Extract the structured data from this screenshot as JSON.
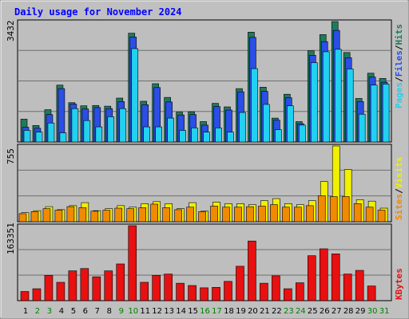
{
  "chart_data": [
    {
      "type": "bar",
      "title": "Daily usage for November 2024",
      "categories": [
        "1",
        "2",
        "3",
        "4",
        "5",
        "6",
        "7",
        "8",
        "9",
        "10",
        "11",
        "12",
        "13",
        "14",
        "15",
        "16",
        "17",
        "18",
        "19",
        "20",
        "21",
        "22",
        "23",
        "24",
        "25",
        "26",
        "27",
        "28",
        "29",
        "30",
        "31"
      ],
      "weekend_days": [
        "2",
        "3",
        "9",
        "10",
        "16",
        "17",
        "23",
        "24",
        "30",
        "31"
      ],
      "ymax_label": "3432",
      "ymax": 3432,
      "series": [
        {
          "name": "Hits",
          "color": "#1f7a5c",
          "values": [
            650,
            470,
            920,
            1620,
            1120,
            1030,
            1040,
            1020,
            1250,
            3100,
            1160,
            1660,
            1270,
            850,
            860,
            580,
            1100,
            1000,
            1520,
            3130,
            1560,
            680,
            1360,
            580,
            2600,
            3060,
            3432,
            2550,
            1240,
            1960,
            1810
          ]
        },
        {
          "name": "Files",
          "color": "#2a4ee6",
          "values": [
            420,
            390,
            780,
            1520,
            1080,
            940,
            980,
            950,
            1150,
            2990,
            1060,
            1550,
            1140,
            770,
            780,
            480,
            1010,
            910,
            1430,
            2980,
            1440,
            620,
            1260,
            520,
            2470,
            2860,
            3180,
            2400,
            1150,
            1850,
            1700
          ]
        },
        {
          "name": "Pages",
          "color": "#22d0f0",
          "values": [
            330,
            280,
            540,
            260,
            950,
            610,
            430,
            720,
            950,
            2660,
            430,
            430,
            680,
            330,
            400,
            280,
            400,
            280,
            840,
            2090,
            1070,
            350,
            1030,
            480,
            2260,
            2570,
            2640,
            2080,
            790,
            1620,
            1650
          ]
        }
      ]
    },
    {
      "type": "bar",
      "categories": [
        "1",
        "2",
        "3",
        "4",
        "5",
        "6",
        "7",
        "8",
        "9",
        "10",
        "11",
        "12",
        "13",
        "14",
        "15",
        "16",
        "17",
        "18",
        "19",
        "20",
        "21",
        "22",
        "23",
        "24",
        "25",
        "26",
        "27",
        "28",
        "29",
        "30",
        "31"
      ],
      "ymax_label": "755",
      "ymax": 755,
      "series": [
        {
          "name": "Visits",
          "color": "#f0f000",
          "values": [
            90,
            110,
            150,
            120,
            160,
            190,
            110,
            130,
            160,
            145,
            180,
            200,
            180,
            130,
            190,
            105,
            195,
            180,
            180,
            170,
            210,
            230,
            180,
            170,
            210,
            400,
            755,
            520,
            220,
            205,
            135
          ]
        },
        {
          "name": "Sites",
          "color": "#f08a00",
          "values": [
            80,
            100,
            130,
            115,
            150,
            140,
            105,
            115,
            135,
            130,
            140,
            175,
            140,
            120,
            145,
            100,
            155,
            145,
            145,
            150,
            155,
            170,
            145,
            145,
            160,
            260,
            250,
            250,
            180,
            145,
            115
          ]
        }
      ]
    },
    {
      "type": "bar",
      "categories": [
        "1",
        "2",
        "3",
        "4",
        "5",
        "6",
        "7",
        "8",
        "9",
        "10",
        "11",
        "12",
        "13",
        "14",
        "15",
        "16",
        "17",
        "18",
        "19",
        "20",
        "21",
        "22",
        "23",
        "24",
        "25",
        "26",
        "27",
        "28",
        "29",
        "30",
        "31"
      ],
      "ymax_label": "163351",
      "ymax": 163351,
      "series": [
        {
          "name": "KBytes",
          "color": "#e81010",
          "values": [
            20000,
            26000,
            55000,
            40000,
            65000,
            70000,
            52000,
            65000,
            80000,
            163351,
            40000,
            55000,
            58000,
            38000,
            33000,
            28000,
            29000,
            42000,
            75000,
            130000,
            38000,
            54000,
            26000,
            39000,
            98000,
            113000,
            102000,
            58000,
            66000,
            32000,
            0
          ]
        }
      ]
    }
  ],
  "side_labels": {
    "top": {
      "hits": "Hits",
      "files": "Files",
      "pages": "Pages",
      "sep": "/"
    },
    "middle": {
      "visits": "Visits",
      "sites": "Sites",
      "sep": "/"
    },
    "bottom": {
      "kbytes": "KBytes"
    }
  },
  "colors": {
    "background": "#c0c0c0",
    "panel": "#bebebe",
    "title_text": "#0000ff",
    "weekday_label": "#000000",
    "weekend_label": "#008000"
  }
}
